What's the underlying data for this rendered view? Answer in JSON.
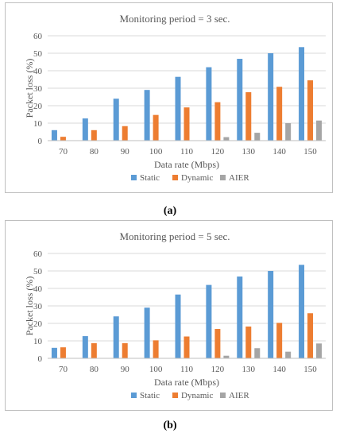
{
  "colors": {
    "static": "#5b9bd5",
    "dynamic": "#ed7d31",
    "aier": "#a5a5a5",
    "grid": "#d9d9d9",
    "axis_text": "#595959"
  },
  "chart_data": [
    {
      "type": "bar",
      "title": "Monitoring period = 3 sec.",
      "xlabel": "Data rate (Mbps)",
      "ylabel": "Packet loss (%)",
      "ylim": [
        0,
        60
      ],
      "yticks": [
        "0",
        "10",
        "20",
        "30",
        "40",
        "50",
        "60"
      ],
      "grid": true,
      "legend_position": "bottom",
      "categories": [
        "70",
        "80",
        "90",
        "100",
        "110",
        "120",
        "130",
        "140",
        "150"
      ],
      "series": [
        {
          "name": "Static",
          "values": [
            6,
            12.7,
            24,
            29,
            36.5,
            42,
            46.8,
            50,
            53.5
          ]
        },
        {
          "name": "Dynamic",
          "values": [
            2.2,
            6,
            8.3,
            14.7,
            19,
            22,
            27.7,
            30.8,
            34.5
          ]
        },
        {
          "name": "AIER",
          "values": [
            0,
            0,
            0,
            0,
            0,
            2,
            4.5,
            10,
            11.5
          ]
        }
      ]
    },
    {
      "type": "bar",
      "title": "Monitoring period = 5 sec.",
      "xlabel": "Data rate (Mbps)",
      "ylabel": "Packet loss (%)",
      "ylim": [
        0,
        60
      ],
      "yticks": [
        "0",
        "10",
        "20",
        "30",
        "40",
        "50",
        "60"
      ],
      "grid": true,
      "legend_position": "bottom",
      "categories": [
        "70",
        "80",
        "90",
        "100",
        "110",
        "120",
        "130",
        "140",
        "150"
      ],
      "series": [
        {
          "name": "Static",
          "values": [
            6,
            12.7,
            24,
            29,
            36.5,
            42,
            46.8,
            50,
            53.5
          ]
        },
        {
          "name": "Dynamic",
          "values": [
            6.3,
            8.7,
            8.7,
            10.3,
            12.5,
            16.8,
            18.2,
            20.3,
            25.8
          ]
        },
        {
          "name": "AIER",
          "values": [
            0,
            0,
            0,
            0,
            0,
            1.5,
            5.8,
            3.8,
            8.5
          ]
        }
      ]
    }
  ],
  "labels": [
    "(a)",
    "(b)"
  ]
}
